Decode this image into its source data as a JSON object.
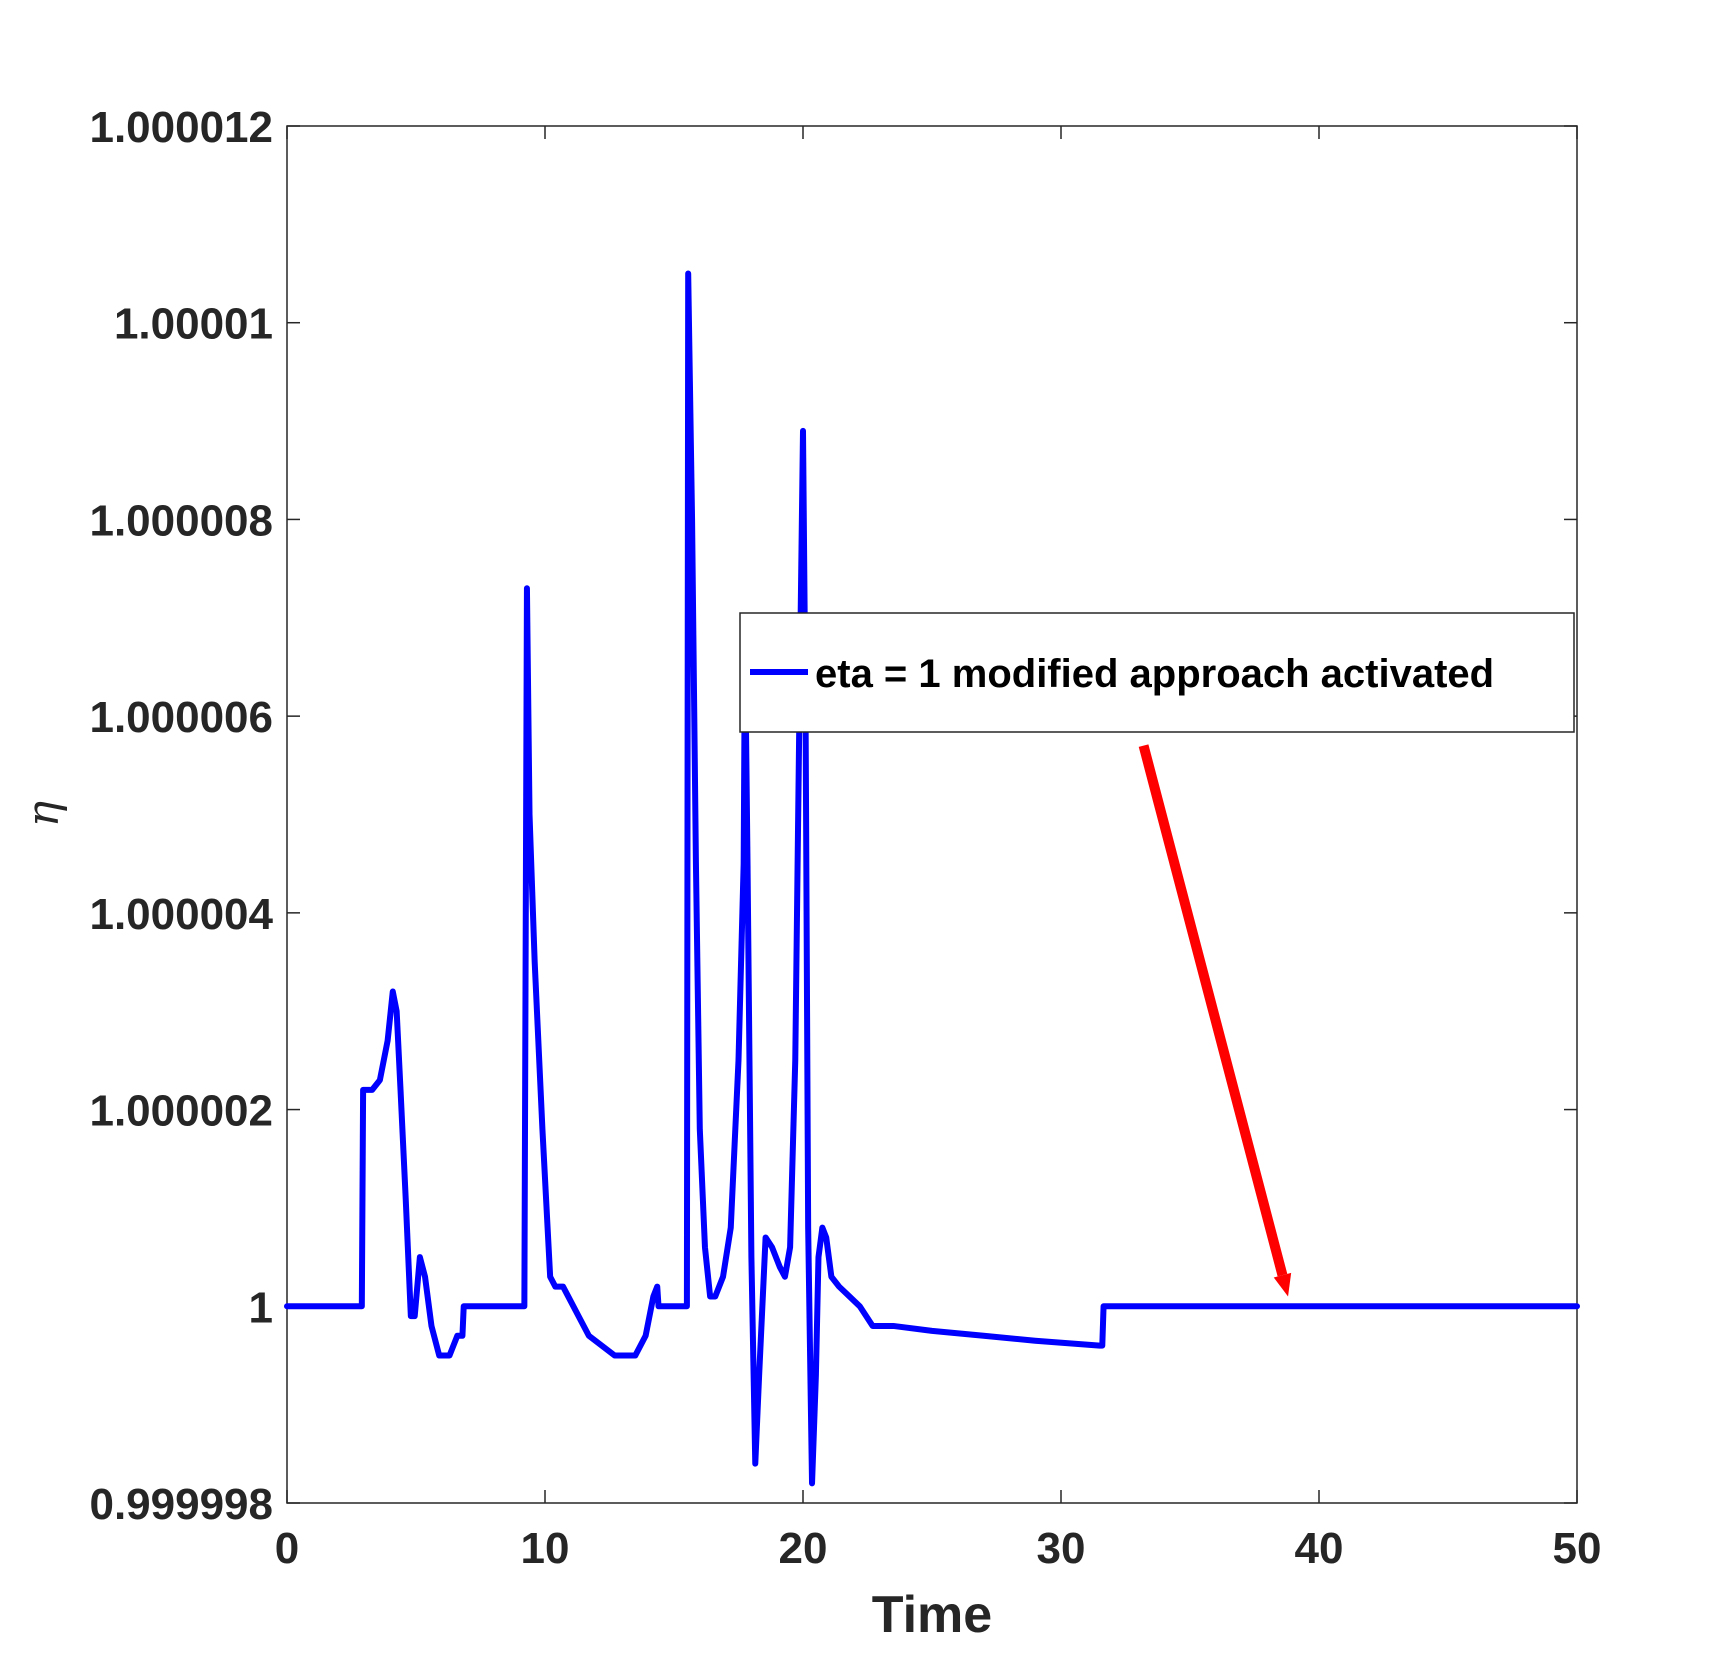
{
  "chart_data": {
    "type": "line",
    "xlabel": "Time",
    "ylabel": "η",
    "xlim": [
      0,
      50
    ],
    "ylim": [
      0.999998,
      1.000012
    ],
    "xticks": [
      "0",
      "10",
      "20",
      "30",
      "40",
      "50"
    ],
    "yticks": [
      "0.999998",
      "1",
      "1.000002",
      "1.000004",
      "1.000006",
      "1.000008",
      "1.00001",
      "1.000012"
    ],
    "grid": false,
    "legend_position": "upper-right",
    "series": [
      {
        "name": "eta = 1 modified approach activated",
        "color": "#0000ff",
        "x": [
          0,
          2.9,
          2.95,
          3.0,
          3.3,
          3.6,
          3.9,
          4.1,
          4.25,
          4.4,
          4.6,
          4.8,
          4.95,
          5.15,
          5.35,
          5.6,
          5.9,
          6.3,
          6.6,
          6.8,
          6.85,
          6.9,
          9.2,
          9.3,
          9.4,
          9.6,
          9.9,
          10.2,
          10.4,
          10.7,
          10.9,
          11.3,
          11.7,
          12.2,
          12.7,
          13.1,
          13.5,
          13.9,
          14.2,
          14.35,
          14.4,
          15.0,
          15.5,
          15.55,
          15.7,
          15.85,
          16.0,
          16.2,
          16.4,
          16.6,
          16.9,
          17.2,
          17.5,
          17.7,
          17.75,
          17.85,
          18.0,
          18.15,
          18.3,
          18.55,
          18.8,
          19.1,
          19.3,
          19.5,
          19.7,
          19.85,
          20.0,
          20.1,
          20.2,
          20.35,
          20.5,
          20.6,
          20.75,
          20.9,
          21.1,
          21.4,
          21.8,
          22.2,
          22.7,
          23.5,
          25,
          27,
          29,
          31.5,
          31.6,
          31.65,
          32,
          35,
          38,
          42,
          46,
          50
        ],
        "y": [
          1.0,
          1.0,
          1.0000022,
          1.0000022,
          1.0000022,
          1.0000023,
          1.0000027,
          1.0000032,
          1.000003,
          1.0000022,
          1.0000011,
          0.9999999,
          0.9999999,
          1.0000005,
          1.0000003,
          0.9999998,
          0.9999995,
          0.9999995,
          0.9999997,
          0.9999997,
          1.0,
          1.0,
          1.0,
          1.0000073,
          1.000005,
          1.0000035,
          1.0000018,
          1.0000003,
          1.0000002,
          1.0000002,
          1.0000001,
          0.9999999,
          0.9999997,
          0.9999996,
          0.9999995,
          0.9999995,
          0.9999995,
          0.9999997,
          1.0000001,
          1.0000002,
          1.0,
          1.0,
          1.0,
          1.0000105,
          1.000008,
          1.0000045,
          1.0000018,
          1.0000006,
          1.0000001,
          1.0000001,
          1.0000003,
          1.0000008,
          1.0000025,
          1.0000045,
          1.0000068,
          1.0000045,
          1.0000005,
          0.9999984,
          0.9999993,
          1.0000007,
          1.0000006,
          1.0000004,
          1.0000003,
          1.0000006,
          1.0000025,
          1.0000058,
          1.0000089,
          1.000006,
          1.0000008,
          0.9999982,
          0.9999993,
          1.0000005,
          1.0000008,
          1.0000007,
          1.0000003,
          1.0000002,
          1.0000001,
          1.0,
          0.9999998,
          0.9999998,
          0.99999975,
          0.9999997,
          0.99999965,
          0.9999996,
          0.9999996,
          1.0,
          1.0,
          1.0,
          1.0,
          1.0,
          1.0,
          1.0
        ]
      }
    ],
    "annotations": [
      {
        "type": "arrow",
        "color": "#ff0000",
        "from": [
          33.2,
          1.0000057
        ],
        "to": [
          38.8,
          1.0000001
        ]
      }
    ]
  }
}
